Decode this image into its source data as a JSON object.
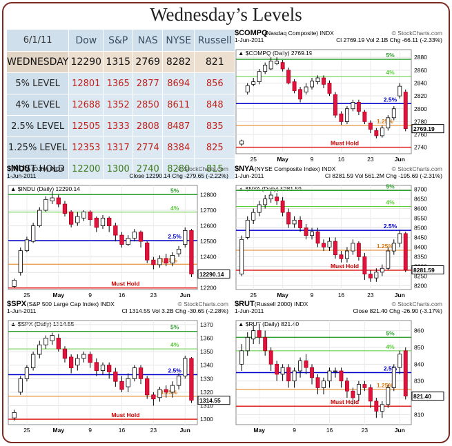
{
  "page_title": "Wednesday’s Levels",
  "colors": {
    "red": "#c0221c",
    "green": "#3d7a1b",
    "level_green": "#2e9e2e",
    "level_blue": "#0000cc",
    "level_orange": "#e07a10",
    "level_red": "#e0201c",
    "up": "#ffffff",
    "down": "#e0143c"
  },
  "table": {
    "date": "6/1/11",
    "columns": [
      "Dow",
      "S&P",
      "NAS",
      "NYSE",
      "Russell"
    ],
    "rows": [
      {
        "label": "WEDNESDAY",
        "values": [
          "12290",
          "1315",
          "2769",
          "8282",
          "821"
        ]
      },
      {
        "label": "5% LEVEL",
        "values": [
          "12801",
          "1365",
          "2877",
          "8694",
          "856"
        ]
      },
      {
        "label": "4% LEVEL",
        "values": [
          "12688",
          "1352",
          "2850",
          "8611",
          "848"
        ]
      },
      {
        "label": "2.5% LEVEL",
        "values": [
          "12505",
          "1333",
          "2808",
          "8487",
          "835"
        ]
      },
      {
        "label": "1.25% LEVEL",
        "values": [
          "12353",
          "1317",
          "2774",
          "8384",
          "825"
        ]
      },
      {
        "label": "MUST HOLD",
        "values": [
          "12200",
          "1300",
          "2740",
          "8280",
          "815"
        ]
      }
    ]
  },
  "chart_data": [
    {
      "id": "compq",
      "type": "candlestick",
      "symbol": "$COMPQ",
      "name": "(Nasdaq Composite)",
      "exchange": "INDX",
      "source": "© StockCharts.com",
      "date": "1-Jun-2011",
      "stats": "Cl 2769.19  Vol 2.1B  Chg -66.11 (-2.33%)",
      "legend": "$COMPQ (Daily) 2769.19",
      "last_value": "2769.19",
      "ylim": [
        2730,
        2892
      ],
      "yticks": [
        2740,
        2760,
        2780,
        2800,
        2820,
        2840,
        2860,
        2880
      ],
      "xticks": [
        "25",
        "May",
        "9",
        "16",
        "23",
        "Jun"
      ],
      "levels": [
        {
          "label": "5%",
          "value": 2877
        },
        {
          "label": "4%",
          "value": 2850
        },
        {
          "label": "2.5%",
          "value": 2808
        },
        {
          "label": "1.25%",
          "value": 2774
        },
        {
          "label": "Must Hold",
          "value": 2740
        }
      ],
      "candles": [
        [
          2745,
          2750,
          2742,
          2752
        ],
        [
          2826,
          2836,
          2822,
          2840
        ],
        [
          2838,
          2842,
          2835,
          2848
        ],
        [
          2842,
          2858,
          2838,
          2862
        ],
        [
          2858,
          2868,
          2854,
          2872
        ],
        [
          2862,
          2874,
          2860,
          2880
        ],
        [
          2870,
          2874,
          2868,
          2880
        ],
        [
          2872,
          2862,
          2858,
          2876
        ],
        [
          2860,
          2840,
          2838,
          2864
        ],
        [
          2842,
          2828,
          2824,
          2846
        ],
        [
          2830,
          2815,
          2810,
          2834
        ],
        [
          2826,
          2834,
          2822,
          2840
        ],
        [
          2834,
          2843,
          2830,
          2848
        ],
        [
          2842,
          2848,
          2838,
          2852
        ],
        [
          2848,
          2838,
          2832,
          2852
        ],
        [
          2840,
          2824,
          2820,
          2844
        ],
        [
          2822,
          2790,
          2786,
          2826
        ],
        [
          2792,
          2780,
          2775,
          2796
        ],
        [
          2780,
          2800,
          2776,
          2804
        ],
        [
          2800,
          2810,
          2796,
          2814
        ],
        [
          2810,
          2796,
          2790,
          2814
        ],
        [
          2795,
          2780,
          2776,
          2798
        ],
        [
          2778,
          2768,
          2762,
          2782
        ],
        [
          2766,
          2758,
          2754,
          2770
        ],
        [
          2758,
          2770,
          2755,
          2774
        ],
        [
          2770,
          2786,
          2766,
          2790
        ],
        [
          2786,
          2800,
          2782,
          2804
        ],
        [
          2820,
          2835,
          2816,
          2840
        ],
        [
          2826,
          2769,
          2765,
          2830
        ]
      ]
    },
    {
      "id": "indu",
      "type": "candlestick",
      "symbol": "$INDU",
      "name": "(DJIA)",
      "exchange": "INDX",
      "source": "© StockCharts.com",
      "date": "1-Jun-2011",
      "stats": "Close 12290.14  Chg -279.65 (-2.22%)",
      "legend": "$INDU (Daily) 12290.14",
      "last_value": "12290.14",
      "ylim": [
        12190,
        12860
      ],
      "yticks": [
        12200,
        12300,
        12400,
        12500,
        12600,
        12700,
        12800
      ],
      "xticks": [
        "25",
        "May",
        "9",
        "16",
        "23",
        "Jun"
      ],
      "levels": [
        {
          "label": "5%",
          "value": 12801
        },
        {
          "label": "4%",
          "value": 12688
        },
        {
          "label": "2.5%",
          "value": 12505
        },
        {
          "label": "1.25%",
          "value": 12353
        },
        {
          "label": "Must Hold",
          "value": 12200
        }
      ],
      "candles": [
        [
          12210,
          12250,
          12200,
          12260
        ],
        [
          12300,
          12440,
          12280,
          12460
        ],
        [
          12440,
          12510,
          12430,
          12530
        ],
        [
          12500,
          12600,
          12490,
          12620
        ],
        [
          12600,
          12700,
          12590,
          12720
        ],
        [
          12700,
          12770,
          12690,
          12790
        ],
        [
          12760,
          12780,
          12740,
          12820
        ],
        [
          12780,
          12740,
          12720,
          12800
        ],
        [
          12740,
          12680,
          12660,
          12760
        ],
        [
          12690,
          12610,
          12590,
          12700
        ],
        [
          12620,
          12660,
          12600,
          12690
        ],
        [
          12650,
          12690,
          12630,
          12700
        ],
        [
          12690,
          12640,
          12600,
          12700
        ],
        [
          12650,
          12590,
          12560,
          12660
        ],
        [
          12600,
          12650,
          12580,
          12670
        ],
        [
          12650,
          12600,
          12560,
          12660
        ],
        [
          12600,
          12540,
          12500,
          12620
        ],
        [
          12540,
          12480,
          12460,
          12560
        ],
        [
          12480,
          12520,
          12470,
          12540
        ],
        [
          12520,
          12560,
          12500,
          12580
        ],
        [
          12560,
          12500,
          12460,
          12570
        ],
        [
          12490,
          12380,
          12360,
          12500
        ],
        [
          12380,
          12350,
          12320,
          12400
        ],
        [
          12350,
          12390,
          12330,
          12410
        ],
        [
          12390,
          12360,
          12340,
          12420
        ],
        [
          12360,
          12410,
          12340,
          12430
        ],
        [
          12420,
          12450,
          12400,
          12470
        ],
        [
          12480,
          12570,
          12460,
          12590
        ],
        [
          12570,
          12290,
          12270,
          12580
        ]
      ]
    },
    {
      "id": "nya",
      "type": "candlestick",
      "symbol": "$NYA",
      "name": "(NYSE Composite Index)",
      "exchange": "INDX",
      "source": "© StockCharts.com",
      "date": "1-Jun-2011",
      "stats": "Cl 8281.59  Vol 561.2M  Chg -195.69 (-2.31%)",
      "legend": "$NYA (Daily) 8281.59",
      "last_value": "8281.59",
      "ylim": [
        8180,
        8720
      ],
      "yticks": [
        8200,
        8250,
        8300,
        8350,
        8400,
        8450,
        8500,
        8550,
        8600,
        8650,
        8700
      ],
      "xticks": [
        "25",
        "May",
        "9",
        "16",
        "23",
        "Jun"
      ],
      "levels": [
        {
          "label": "5%",
          "value": 8694
        },
        {
          "label": "4%",
          "value": 8611
        },
        {
          "label": "2.5%",
          "value": 8487
        },
        {
          "label": "1.25%",
          "value": 8384
        },
        {
          "label": "Must Hold",
          "value": 8280
        }
      ],
      "candles": [
        [
          8260,
          8440,
          8250,
          8460
        ],
        [
          8450,
          8540,
          8440,
          8560
        ],
        [
          8540,
          8580,
          8520,
          8600
        ],
        [
          8580,
          8620,
          8560,
          8640
        ],
        [
          8620,
          8650,
          8600,
          8670
        ],
        [
          8650,
          8670,
          8630,
          8690
        ],
        [
          8660,
          8640,
          8620,
          8680
        ],
        [
          8640,
          8580,
          8560,
          8660
        ],
        [
          8580,
          8520,
          8500,
          8600
        ],
        [
          8520,
          8540,
          8500,
          8560
        ],
        [
          8540,
          8500,
          8480,
          8560
        ],
        [
          8500,
          8460,
          8440,
          8520
        ],
        [
          8460,
          8480,
          8440,
          8500
        ],
        [
          8480,
          8420,
          8400,
          8500
        ],
        [
          8420,
          8400,
          8380,
          8440
        ],
        [
          8400,
          8430,
          8380,
          8450
        ],
        [
          8430,
          8360,
          8340,
          8450
        ],
        [
          8360,
          8340,
          8320,
          8380
        ],
        [
          8340,
          8380,
          8320,
          8400
        ],
        [
          8380,
          8420,
          8360,
          8440
        ],
        [
          8420,
          8350,
          8330,
          8430
        ],
        [
          8350,
          8260,
          8230,
          8370
        ],
        [
          8260,
          8240,
          8220,
          8280
        ],
        [
          8240,
          8270,
          8220,
          8290
        ],
        [
          8270,
          8290,
          8250,
          8310
        ],
        [
          8290,
          8380,
          8280,
          8400
        ],
        [
          8380,
          8420,
          8360,
          8440
        ],
        [
          8420,
          8470,
          8400,
          8490
        ],
        [
          8470,
          8282,
          8270,
          8480
        ]
      ]
    },
    {
      "id": "spx",
      "type": "candlestick",
      "symbol": "$SPX",
      "name": "(S&P 500 Large Cap Index)",
      "exchange": "INDX",
      "source": "© StockCharts.com",
      "date": "1-Jun-2011",
      "stats": "Cl 1314.55  Vol 3.2B  Chg -30.65 (-2.28%)",
      "legend": "$SPX (Daily) 1314.55",
      "last_value": "1314.55",
      "ylim": [
        1296,
        1373
      ],
      "yticks": [
        1300,
        1310,
        1320,
        1330,
        1340,
        1350,
        1360,
        1370
      ],
      "xticks": [
        "25",
        "May",
        "9",
        "16",
        "23",
        "Jun"
      ],
      "levels": [
        {
          "label": "5%",
          "value": 1365
        },
        {
          "label": "4%",
          "value": 1352
        },
        {
          "label": "2.5%",
          "value": 1333
        },
        {
          "label": "1.25%",
          "value": 1317
        },
        {
          "label": "Must Hold",
          "value": 1300
        }
      ],
      "candles": [
        [
          1301,
          1305,
          1299,
          1307
        ],
        [
          1320,
          1330,
          1318,
          1332
        ],
        [
          1330,
          1338,
          1328,
          1340
        ],
        [
          1338,
          1348,
          1336,
          1350
        ],
        [
          1348,
          1355,
          1345,
          1358
        ],
        [
          1355,
          1360,
          1352,
          1362
        ],
        [
          1358,
          1362,
          1355,
          1364
        ],
        [
          1360,
          1352,
          1350,
          1363
        ],
        [
          1352,
          1345,
          1342,
          1354
        ],
        [
          1346,
          1338,
          1334,
          1348
        ],
        [
          1340,
          1345,
          1336,
          1348
        ],
        [
          1345,
          1348,
          1342,
          1350
        ],
        [
          1348,
          1342,
          1338,
          1350
        ],
        [
          1342,
          1336,
          1332,
          1345
        ],
        [
          1336,
          1340,
          1333,
          1342
        ],
        [
          1340,
          1335,
          1330,
          1342
        ],
        [
          1335,
          1328,
          1324,
          1338
        ],
        [
          1328,
          1322,
          1320,
          1332
        ],
        [
          1324,
          1330,
          1320,
          1334
        ],
        [
          1330,
          1338,
          1328,
          1340
        ],
        [
          1338,
          1330,
          1326,
          1340
        ],
        [
          1330,
          1318,
          1315,
          1332
        ],
        [
          1318,
          1315,
          1310,
          1320
        ],
        [
          1316,
          1322,
          1313,
          1324
        ],
        [
          1322,
          1320,
          1316,
          1325
        ],
        [
          1320,
          1325,
          1316,
          1328
        ],
        [
          1325,
          1332,
          1322,
          1334
        ],
        [
          1332,
          1345,
          1330,
          1347
        ],
        [
          1345,
          1314,
          1312,
          1346
        ]
      ]
    },
    {
      "id": "rut",
      "type": "candlestick",
      "symbol": "$RUT",
      "name": "(Russell 2000)",
      "exchange": "INDX",
      "source": "© StockCharts.com",
      "date": "1-Jun-2011",
      "stats": "Close 821.40  Chg -26.90 (-3.17%)",
      "legend": "$RUT (Daily) 821.40",
      "last_value": "821.40",
      "ylim": [
        804,
        866
      ],
      "yticks": [
        810,
        820,
        830,
        840,
        850,
        860
      ],
      "xticks": [
        "May",
        "9",
        "16",
        "23",
        "Jun"
      ],
      "levels": [
        {
          "label": "5%",
          "value": 856
        },
        {
          "label": "4%",
          "value": 848
        },
        {
          "label": "2.5%",
          "value": 835
        },
        {
          "label": "1.25%",
          "value": 825
        },
        {
          "label": "Must Hold",
          "value": 815
        }
      ],
      "candles": [
        [
          840,
          848,
          836,
          852
        ],
        [
          848,
          856,
          845,
          859
        ],
        [
          855,
          860,
          852,
          863
        ],
        [
          860,
          856,
          852,
          864
        ],
        [
          856,
          848,
          845,
          860
        ],
        [
          848,
          840,
          836,
          850
        ],
        [
          840,
          834,
          830,
          842
        ],
        [
          834,
          838,
          830,
          840
        ],
        [
          838,
          830,
          826,
          840
        ],
        [
          830,
          836,
          826,
          838
        ],
        [
          836,
          842,
          832,
          844
        ],
        [
          842,
          838,
          834,
          846
        ],
        [
          838,
          832,
          828,
          840
        ],
        [
          832,
          826,
          822,
          834
        ],
        [
          826,
          830,
          822,
          832
        ],
        [
          830,
          836,
          826,
          838
        ],
        [
          836,
          836,
          832,
          838
        ],
        [
          836,
          830,
          826,
          838
        ],
        [
          830,
          824,
          820,
          832
        ],
        [
          824,
          820,
          816,
          826
        ],
        [
          822,
          828,
          818,
          830
        ],
        [
          828,
          826,
          824,
          830
        ],
        [
          826,
          818,
          814,
          828
        ],
        [
          818,
          812,
          808,
          820
        ],
        [
          812,
          816,
          808,
          818
        ],
        [
          816,
          826,
          814,
          828
        ],
        [
          826,
          838,
          824,
          840
        ],
        [
          838,
          846,
          834,
          848
        ],
        [
          848,
          821,
          819,
          850
        ]
      ]
    }
  ]
}
